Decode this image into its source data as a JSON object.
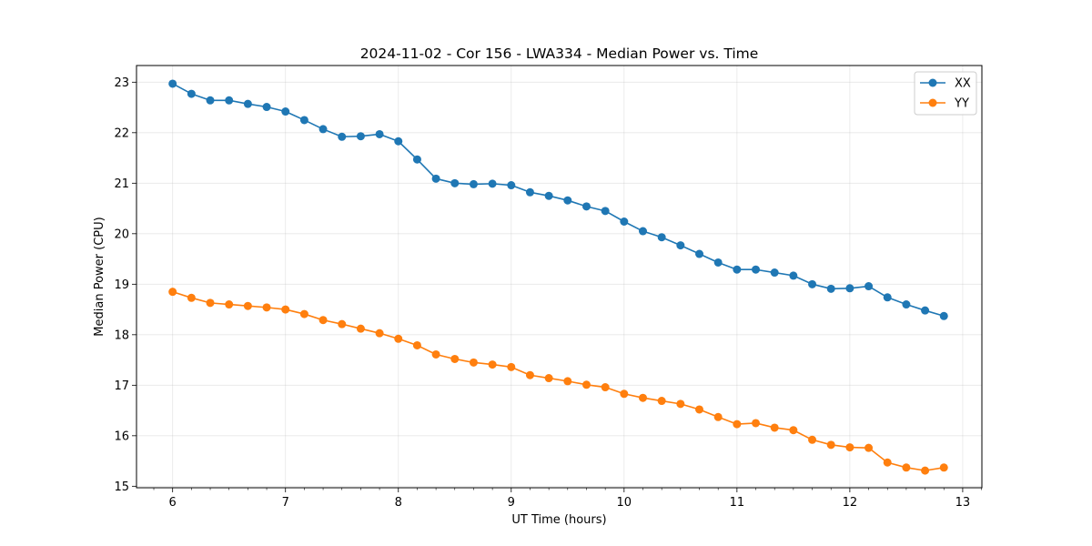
{
  "chart_data": {
    "type": "line",
    "title": "2024-11-02 - Cor 156 - LWA334 - Median Power vs. Time",
    "xlabel": "UT Time (hours)",
    "ylabel": "Median Power (CPU)",
    "xlim": [
      5.68,
      13.17
    ],
    "ylim": [
      14.97,
      23.33
    ],
    "xticks": [
      6,
      7,
      8,
      9,
      10,
      11,
      12,
      13
    ],
    "yticks": [
      15,
      16,
      17,
      18,
      19,
      20,
      21,
      22,
      23
    ],
    "grid": true,
    "legend_position": "top-right",
    "x": [
      6.0,
      6.1667,
      6.3333,
      6.5,
      6.6667,
      6.8333,
      7.0,
      7.1667,
      7.3333,
      7.5,
      7.6667,
      7.8333,
      8.0,
      8.1667,
      8.3333,
      8.5,
      8.6667,
      8.8333,
      9.0,
      9.1667,
      9.3333,
      9.5,
      9.6667,
      9.8333,
      10.0,
      10.1667,
      10.3333,
      10.5,
      10.6667,
      10.8333,
      11.0,
      11.1667,
      11.3333,
      11.5,
      11.6667,
      11.8333,
      12.0,
      12.1667,
      12.3333,
      12.5,
      12.6667,
      12.8333
    ],
    "series": [
      {
        "name": "XX",
        "color": "#1f77b4",
        "values": [
          22.97,
          22.77,
          22.64,
          22.64,
          22.57,
          22.51,
          22.42,
          22.25,
          22.07,
          21.92,
          21.93,
          21.97,
          21.83,
          21.47,
          21.09,
          21.0,
          20.98,
          20.99,
          20.96,
          20.82,
          20.75,
          20.66,
          20.54,
          20.45,
          20.24,
          20.05,
          19.93,
          19.77,
          19.6,
          19.43,
          19.29,
          19.29,
          19.23,
          19.17,
          19.0,
          18.91,
          18.92,
          18.96,
          18.74,
          18.6,
          18.48,
          18.37
        ]
      },
      {
        "name": "YY",
        "color": "#ff7f0e",
        "values": [
          18.85,
          18.73,
          18.63,
          18.6,
          18.57,
          18.54,
          18.5,
          18.41,
          18.29,
          18.21,
          18.12,
          18.03,
          17.92,
          17.79,
          17.61,
          17.52,
          17.45,
          17.41,
          17.36,
          17.2,
          17.14,
          17.08,
          17.01,
          16.96,
          16.83,
          16.75,
          16.69,
          16.63,
          16.52,
          16.37,
          16.23,
          16.25,
          16.16,
          16.11,
          15.92,
          15.82,
          15.77,
          15.76,
          15.47,
          15.37,
          15.31,
          15.37
        ]
      }
    ]
  }
}
